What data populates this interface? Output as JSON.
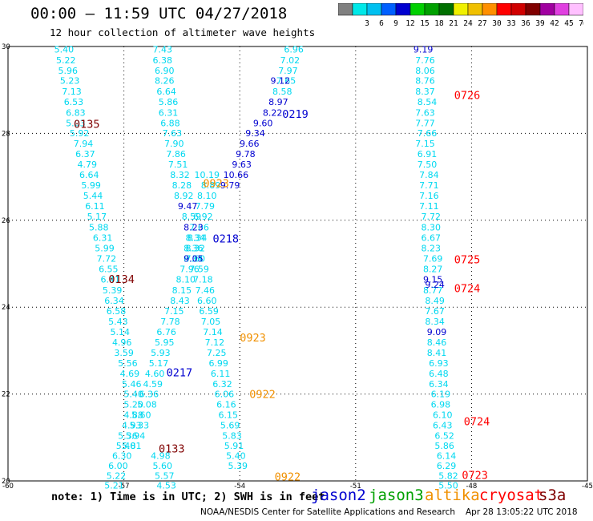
{
  "header": {
    "title": "00:00 – 11:59 UTC 04/27/2018",
    "subtitle": "12 hour collection of altimeter wave heights"
  },
  "legend": {
    "bins": [
      {
        "label": "",
        "color": "#808080"
      },
      {
        "label": "3",
        "color": "#00e8e8"
      },
      {
        "label": "6",
        "color": "#00c0f0"
      },
      {
        "label": "9",
        "color": "#0060ff"
      },
      {
        "label": "12",
        "color": "#0000d0"
      },
      {
        "label": "15",
        "color": "#00d000"
      },
      {
        "label": "18",
        "color": "#00a000"
      },
      {
        "label": "21",
        "color": "#007000"
      },
      {
        "label": "24",
        "color": "#f0f000"
      },
      {
        "label": "27",
        "color": "#f0c000"
      },
      {
        "label": "30",
        "color": "#ff9000"
      },
      {
        "label": "33",
        "color": "#ff0000"
      },
      {
        "label": "36",
        "color": "#d00000"
      },
      {
        "label": "39",
        "color": "#800000"
      },
      {
        "label": "42",
        "color": "#a000a0"
      },
      {
        "label": "45",
        "color": "#e040e0"
      },
      {
        "label": "70",
        "color": "#ffc0ff"
      },
      {
        "label": "(ft)",
        "color": "#000000"
      }
    ]
  },
  "map": {
    "lon_min": -60,
    "lon_max": -45,
    "lat_min": 20,
    "lat_max": 30,
    "lon_ticks": [
      {
        "value": -60,
        "label": "-60"
      },
      {
        "value": -57,
        "label": "-57"
      },
      {
        "value": -54,
        "label": "-54"
      },
      {
        "value": -51,
        "label": "-51"
      },
      {
        "value": -48,
        "label": "-48"
      },
      {
        "value": -45,
        "label": "-45"
      }
    ],
    "lat_ticks": [
      {
        "value": 20,
        "label": "20"
      },
      {
        "value": 22,
        "label": "22"
      },
      {
        "value": 24,
        "label": "24"
      },
      {
        "value": 26,
        "label": "26"
      },
      {
        "value": 28,
        "label": "28"
      },
      {
        "value": 30,
        "label": "30"
      }
    ],
    "colors": {
      "cyan": "#00d8f0",
      "blue": "#0000d0",
      "mid": "#0070ff",
      "orange": "#f09000",
      "red": "#ff0000",
      "darkred": "#800000"
    },
    "tracks": [
      {
        "color": "cyan",
        "points": [
          [
            -58.55,
            29.94,
            "5.40"
          ],
          [
            -58.5,
            29.69,
            "5.22"
          ],
          [
            -58.45,
            29.45,
            "5.96"
          ],
          [
            -58.4,
            29.22,
            "5.23"
          ],
          [
            -58.35,
            28.97,
            "7.13"
          ],
          [
            -58.3,
            28.73,
            "6.53"
          ],
          [
            -58.25,
            28.48,
            "6.83"
          ],
          [
            -58.25,
            28.24,
            "5.03"
          ],
          [
            -58.15,
            28.01,
            "5.92"
          ],
          [
            -58.05,
            27.77,
            "7.94"
          ],
          [
            -58.0,
            27.53,
            "6.37"
          ],
          [
            -57.95,
            27.29,
            "4.79"
          ],
          [
            -57.9,
            27.05,
            "6.64"
          ],
          [
            -57.85,
            26.81,
            "5.99"
          ],
          [
            -57.8,
            26.57,
            "5.44"
          ],
          [
            -57.75,
            26.33,
            "6.11"
          ],
          [
            -57.7,
            26.09,
            "5.17"
          ],
          [
            -57.65,
            25.84,
            "5.88"
          ],
          [
            -57.55,
            25.6,
            "6.31"
          ],
          [
            -57.5,
            25.36,
            "5.99"
          ],
          [
            -57.45,
            25.12,
            "7.72"
          ],
          [
            -57.4,
            24.88,
            "6.55"
          ],
          [
            -57.35,
            24.64,
            "6.41"
          ],
          [
            -57.3,
            24.39,
            "5.39"
          ],
          [
            -57.25,
            24.15,
            "6.34"
          ],
          [
            -57.2,
            23.91,
            "6.58"
          ],
          [
            -57.15,
            23.67,
            "5.43"
          ],
          [
            -57.1,
            23.43,
            "5.14"
          ],
          [
            -57.05,
            23.19,
            "4.96"
          ],
          [
            -57.0,
            22.95,
            "3.59"
          ],
          [
            -56.9,
            22.71,
            "5.56"
          ],
          [
            -56.85,
            22.47,
            "4.69"
          ],
          [
            -56.8,
            22.23,
            "5.46"
          ],
          [
            -56.75,
            22.0,
            "5.40"
          ],
          [
            -56.75,
            21.76,
            "5.20"
          ],
          [
            -56.75,
            21.52,
            "4.88"
          ],
          [
            -56.8,
            21.28,
            "4.93"
          ],
          [
            -56.9,
            21.04,
            "5.36"
          ],
          [
            -56.95,
            20.81,
            "5.40"
          ],
          [
            -57.05,
            20.58,
            "6.30"
          ],
          [
            -57.15,
            20.35,
            "6.00"
          ],
          [
            -57.2,
            20.12,
            "5.22"
          ],
          [
            -57.25,
            19.9,
            "5.21"
          ],
          [
            -57.35,
            19.68,
            "5.29"
          ],
          [
            -57.4,
            19.45,
            "5.35"
          ]
        ]
      },
      {
        "color": "cyan",
        "points": [
          [
            -56.0,
            29.94,
            "7.43"
          ],
          [
            -56.0,
            29.69,
            "6.38"
          ],
          [
            -55.95,
            29.45,
            "6.90"
          ],
          [
            -55.95,
            29.22,
            "8.26"
          ],
          [
            -55.9,
            28.97,
            "6.64"
          ],
          [
            -55.85,
            28.73,
            "5.86"
          ],
          [
            -55.85,
            28.48,
            "6.31"
          ],
          [
            -55.8,
            28.24,
            "6.88"
          ],
          [
            -55.75,
            28.01,
            "7.63"
          ],
          [
            -55.7,
            27.77,
            "7.90"
          ],
          [
            -55.65,
            27.53,
            "7.86"
          ],
          [
            -55.6,
            27.29,
            "7.51"
          ],
          [
            -55.55,
            27.05,
            "8.32"
          ],
          [
            -55.5,
            26.81,
            "8.28"
          ],
          [
            -55.45,
            26.57,
            "8.92"
          ],
          [
            -55.25,
            26.09,
            "8.59"
          ],
          [
            -55.1,
            25.6,
            "8.34"
          ],
          [
            -55.15,
            25.36,
            "8.32"
          ],
          [
            -55.2,
            25.12,
            "8.34"
          ],
          [
            -55.3,
            24.88,
            "7.96"
          ],
          [
            -55.4,
            24.64,
            "8.10"
          ],
          [
            -55.5,
            24.39,
            "8.15"
          ],
          [
            -55.55,
            24.15,
            "8.43"
          ],
          [
            -55.7,
            23.91,
            "7.15"
          ],
          [
            -55.8,
            23.67,
            "7.78"
          ],
          [
            -55.9,
            23.43,
            "6.76"
          ],
          [
            -55.95,
            23.19,
            "5.95"
          ],
          [
            -56.05,
            22.95,
            "5.93"
          ],
          [
            -56.1,
            22.71,
            "5.17"
          ],
          [
            -56.2,
            22.47,
            "4.60"
          ],
          [
            -56.25,
            22.23,
            "4.59"
          ],
          [
            -56.35,
            22.0,
            "6.36"
          ],
          [
            -56.4,
            21.76,
            "5.08"
          ],
          [
            -56.55,
            21.52,
            "5.60"
          ],
          [
            -56.6,
            21.28,
            "5.33"
          ],
          [
            -56.7,
            21.04,
            "5.94"
          ],
          [
            -56.8,
            20.81,
            "5.81"
          ],
          [
            -56.05,
            20.58,
            "4.98"
          ],
          [
            -56.0,
            20.35,
            "5.60"
          ],
          [
            -55.95,
            20.12,
            "5.57"
          ],
          [
            -55.9,
            19.9,
            "4.53"
          ],
          [
            -55.85,
            19.68,
            "3.98"
          ]
        ]
      },
      {
        "color": "cyan",
        "points": [
          [
            -52.6,
            29.94,
            "6.96"
          ],
          [
            -52.7,
            29.69,
            "7.02"
          ],
          [
            -52.75,
            29.45,
            "7.97"
          ],
          [
            -52.8,
            29.22,
            "7.65"
          ],
          [
            -52.9,
            28.97,
            "8.58"
          ],
          [
            -54.85,
            27.05,
            "10.19"
          ],
          [
            -54.75,
            26.81,
            "8.89"
          ],
          [
            -54.85,
            26.57,
            "8.10"
          ],
          [
            -54.9,
            26.33,
            "7.79"
          ],
          [
            -54.95,
            26.09,
            "6.92"
          ],
          [
            -55.05,
            25.84,
            "7.06"
          ],
          [
            -55.15,
            25.6,
            "8.34"
          ],
          [
            -55.2,
            25.36,
            "8.36"
          ],
          [
            -55.15,
            25.12,
            "7.60"
          ],
          [
            -55.05,
            24.88,
            "7.59"
          ],
          [
            -54.95,
            24.64,
            "7.18"
          ],
          [
            -54.9,
            24.39,
            "7.46"
          ],
          [
            -54.85,
            24.15,
            "6.60"
          ],
          [
            -54.8,
            23.91,
            "6.59"
          ],
          [
            -54.75,
            23.67,
            "7.05"
          ],
          [
            -54.7,
            23.43,
            "7.14"
          ],
          [
            -54.65,
            23.19,
            "7.12"
          ],
          [
            -54.6,
            22.95,
            "7.25"
          ],
          [
            -54.55,
            22.71,
            "6.99"
          ],
          [
            -54.5,
            22.47,
            "6.11"
          ],
          [
            -54.45,
            22.23,
            "6.32"
          ],
          [
            -54.4,
            22.0,
            "6.06"
          ],
          [
            -54.35,
            21.76,
            "6.16"
          ],
          [
            -54.3,
            21.52,
            "6.15"
          ],
          [
            -54.25,
            21.28,
            "5.69"
          ],
          [
            -54.2,
            21.04,
            "5.83"
          ],
          [
            -54.15,
            20.81,
            "5.91"
          ],
          [
            -54.1,
            20.58,
            "5.40"
          ],
          [
            -54.05,
            20.35,
            "5.39"
          ]
        ]
      },
      {
        "color": "cyan",
        "points": [
          [
            -49.2,
            29.69,
            "7.76"
          ],
          [
            -49.2,
            29.45,
            "8.06"
          ],
          [
            -49.2,
            29.22,
            "8.76"
          ],
          [
            -49.2,
            28.97,
            "8.37"
          ],
          [
            -49.15,
            28.73,
            "8.54"
          ],
          [
            -49.2,
            28.48,
            "7.63"
          ],
          [
            -49.2,
            28.24,
            "7.77"
          ],
          [
            -49.15,
            28.01,
            "7.66"
          ],
          [
            -49.2,
            27.77,
            "7.15"
          ],
          [
            -49.15,
            27.53,
            "6.91"
          ],
          [
            -49.15,
            27.29,
            "7.50"
          ],
          [
            -49.1,
            27.05,
            "7.84"
          ],
          [
            -49.1,
            26.81,
            "7.71"
          ],
          [
            -49.1,
            26.57,
            "7.16"
          ],
          [
            -49.1,
            26.33,
            "7.11"
          ],
          [
            -49.05,
            26.09,
            "7.72"
          ],
          [
            -49.05,
            25.84,
            "8.30"
          ],
          [
            -49.05,
            25.6,
            "6.67"
          ],
          [
            -49.05,
            25.36,
            "8.23"
          ],
          [
            -49.0,
            25.12,
            "7.69"
          ],
          [
            -49.0,
            24.88,
            "8.27"
          ],
          [
            -49.0,
            24.39,
            "8.77"
          ],
          [
            -48.95,
            24.15,
            "8.49"
          ],
          [
            -48.95,
            23.91,
            "7.67"
          ],
          [
            -48.95,
            23.67,
            "8.34"
          ],
          [
            -48.9,
            23.19,
            "8.46"
          ],
          [
            -48.9,
            22.95,
            "8.41"
          ],
          [
            -48.85,
            22.71,
            "6.93"
          ],
          [
            -48.85,
            22.47,
            "6.48"
          ],
          [
            -48.85,
            22.23,
            "6.34"
          ],
          [
            -48.8,
            22.0,
            "6.19"
          ],
          [
            -48.8,
            21.76,
            "6.98"
          ],
          [
            -48.75,
            21.52,
            "6.10"
          ],
          [
            -48.75,
            21.28,
            "6.43"
          ],
          [
            -48.7,
            21.04,
            "6.52"
          ],
          [
            -48.7,
            20.81,
            "5.86"
          ],
          [
            -48.65,
            20.58,
            "6.14"
          ],
          [
            -48.65,
            20.35,
            "6.29"
          ],
          [
            -48.6,
            20.12,
            "5.82"
          ],
          [
            -48.6,
            19.9,
            "5.50"
          ]
        ]
      },
      {
        "color": "blue",
        "points": [
          [
            -53.0,
            28.73,
            "8.97"
          ],
          [
            -53.15,
            28.48,
            "8.22"
          ],
          [
            -53.4,
            28.24,
            "9.60"
          ],
          [
            -53.6,
            28.01,
            "9.34"
          ],
          [
            -53.75,
            27.77,
            "9.66"
          ],
          [
            -53.85,
            27.53,
            "9.78"
          ],
          [
            -53.95,
            27.29,
            "9.63"
          ],
          [
            -54.1,
            27.05,
            "10.66"
          ],
          [
            -54.25,
            26.81,
            "9.79"
          ],
          [
            -55.35,
            26.33,
            "9.47"
          ],
          [
            -55.2,
            25.84,
            "8.23"
          ],
          [
            -55.2,
            25.12,
            "9.05"
          ],
          [
            -52.95,
            29.22,
            "9.12"
          ],
          [
            -49.25,
            29.94,
            "9.19"
          ],
          [
            -49.0,
            24.64,
            "9.15"
          ],
          [
            -48.95,
            24.52,
            "9.24"
          ],
          [
            -48.9,
            23.43,
            "9.09"
          ]
        ]
      }
    ],
    "labels": [
      {
        "lon": -58.3,
        "lat": 28.22,
        "text": "0135",
        "color": "darkred"
      },
      {
        "lon": -52.9,
        "lat": 28.45,
        "text": "0219",
        "color": "blue"
      },
      {
        "lon": -48.45,
        "lat": 28.88,
        "text": "0726",
        "color": "red"
      },
      {
        "lon": -54.95,
        "lat": 26.85,
        "text": "0923",
        "color": "orange"
      },
      {
        "lon": -54.7,
        "lat": 25.58,
        "text": "0218",
        "color": "blue"
      },
      {
        "lon": -48.45,
        "lat": 25.1,
        "text": "0725",
        "color": "red"
      },
      {
        "lon": -48.45,
        "lat": 24.44,
        "text": "0724",
        "color": "red"
      },
      {
        "lon": -57.4,
        "lat": 24.65,
        "text": "0134",
        "color": "darkred"
      },
      {
        "lon": -54.0,
        "lat": 23.3,
        "text": "0923",
        "color": "orange"
      },
      {
        "lon": -55.9,
        "lat": 22.5,
        "text": "0217",
        "color": "blue"
      },
      {
        "lon": -53.75,
        "lat": 22.0,
        "text": "0922",
        "color": "orange"
      },
      {
        "lon": -48.2,
        "lat": 21.37,
        "text": "0724",
        "color": "red"
      },
      {
        "lon": -56.1,
        "lat": 20.75,
        "text": "0133",
        "color": "darkred"
      },
      {
        "lon": -53.1,
        "lat": 20.1,
        "text": "0922",
        "color": "orange"
      },
      {
        "lon": -48.25,
        "lat": 20.14,
        "text": "0723",
        "color": "red"
      },
      {
        "lon": -57.0,
        "lat": 19.65,
        "text": "0216",
        "color": "blue"
      },
      {
        "lon": -55.55,
        "lat": 19.7,
        "text": "0132",
        "color": "darkred"
      }
    ]
  },
  "footer": {
    "note": "note: 1) Time is in UTC; 2) SWH is in feet",
    "satellites": [
      {
        "name": "jason2",
        "color": "#0000d0"
      },
      {
        "name": "jason3",
        "color": "#00a000"
      },
      {
        "name": "altika",
        "color": "#f09000"
      },
      {
        "name": "cryosat",
        "color": "#ff0000"
      },
      {
        "name": "s3a",
        "color": "#800000"
      }
    ],
    "credit": "NOAA/NESDIS Center for Satellite Applications and Research",
    "timestamp": "Apr 28 13:05:22 UTC 2018"
  }
}
